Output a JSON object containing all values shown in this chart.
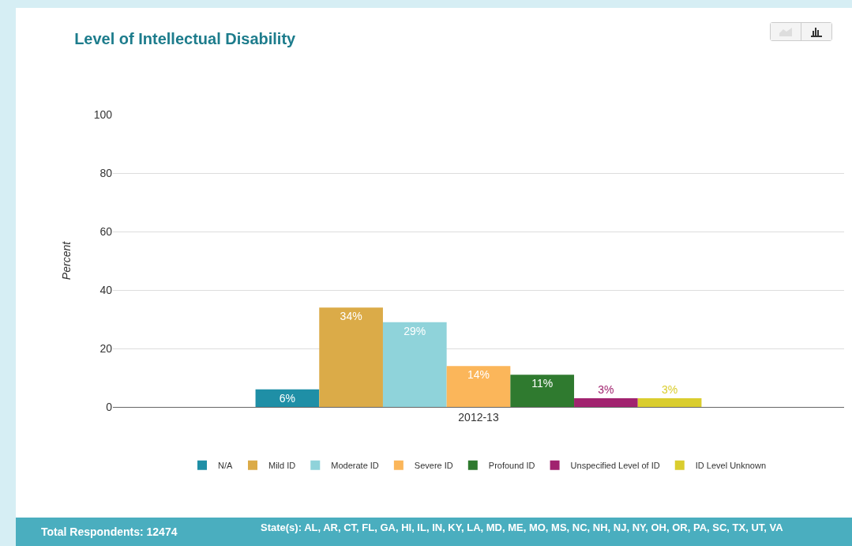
{
  "chart_data": {
    "type": "bar",
    "title": "Level of Intellectual Disability",
    "ylabel": "Percent",
    "categories": [
      "2012-13"
    ],
    "series": [
      {
        "name": "N/A",
        "color": "#1f8fa6",
        "values": [
          6
        ],
        "value_labels": [
          "6%"
        ]
      },
      {
        "name": "Mild ID",
        "color": "#dbab48",
        "values": [
          34
        ],
        "value_labels": [
          "34%"
        ]
      },
      {
        "name": "Moderate ID",
        "color": "#8fd3da",
        "values": [
          29
        ],
        "value_labels": [
          "29%"
        ]
      },
      {
        "name": "Severe ID",
        "color": "#fbb65a",
        "values": [
          14
        ],
        "value_labels": [
          "14%"
        ]
      },
      {
        "name": "Profound ID",
        "color": "#2f7a2f",
        "values": [
          11
        ],
        "value_labels": [
          "11%"
        ]
      },
      {
        "name": "Unspecified Level of ID",
        "color": "#a1236f",
        "values": [
          3
        ],
        "value_labels": [
          "3%"
        ]
      },
      {
        "name": "ID Level Unknown",
        "color": "#dacd2e",
        "values": [
          3
        ],
        "value_labels": [
          "3%"
        ]
      }
    ],
    "ylim": [
      0,
      100
    ],
    "yticks": [
      0,
      20,
      40,
      60,
      80,
      100
    ],
    "grid": "y",
    "legend": "bottom",
    "annotations": [
      "Total Respondents: 12474",
      "State(s): AL, AR, CT, FL, GA, HI, IL, IN, KY, LA, MD, ME, MO, MS, NC, NH, NJ, NY, OH, OR, PA, SC, TX, UT, VA"
    ]
  }
}
